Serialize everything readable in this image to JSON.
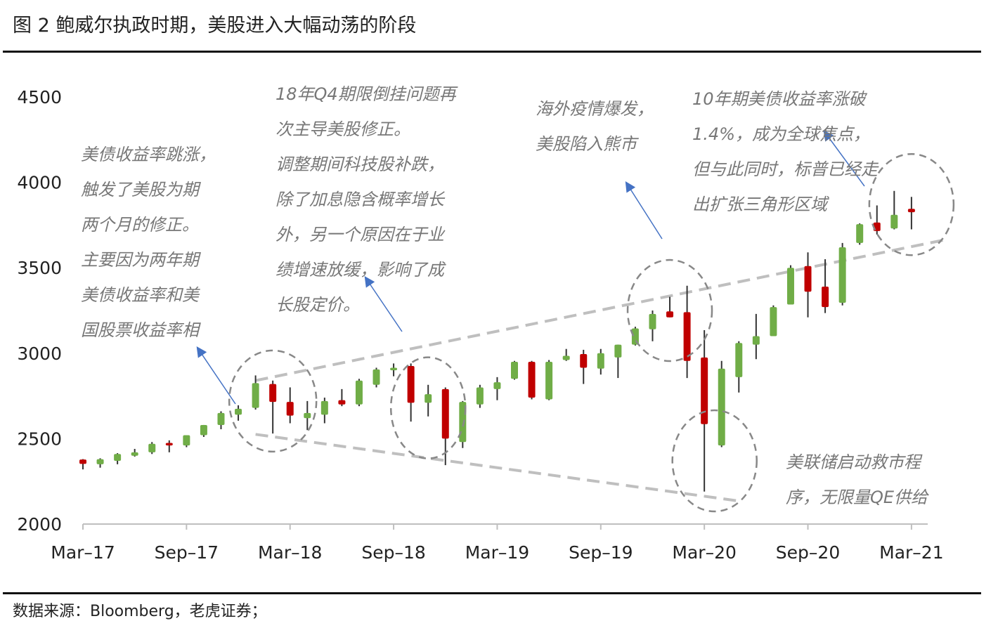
{
  "title": "图 2 鲍威尔执政时期，美股进入大幅动荡的阶段",
  "source": "数据来源：Bloomberg，老虎证券；",
  "chart_data": {
    "type": "candlestick",
    "title": "",
    "ylim": [
      2000,
      4500
    ],
    "yticks": [
      2000,
      2500,
      3000,
      3500,
      4000,
      4500
    ],
    "xticks": [
      "Mar–17",
      "Sep–17",
      "Mar–18",
      "Sep–18",
      "Mar–19",
      "Sep–19",
      "Mar–20",
      "Sep–20",
      "Mar–21"
    ],
    "up_color": "#70AD47",
    "down_color": "#C00000",
    "candles": [
      {
        "month": "2017-03",
        "open": 2378,
        "close": 2352,
        "high": 2380,
        "low": 2320
      },
      {
        "month": "2017-04",
        "open": 2350,
        "close": 2380,
        "high": 2385,
        "low": 2330
      },
      {
        "month": "2017-05",
        "open": 2370,
        "close": 2410,
        "high": 2415,
        "low": 2350
      },
      {
        "month": "2017-06",
        "open": 2400,
        "close": 2420,
        "high": 2440,
        "low": 2395
      },
      {
        "month": "2017-07",
        "open": 2420,
        "close": 2470,
        "high": 2480,
        "low": 2410
      },
      {
        "month": "2017-08",
        "open": 2475,
        "close": 2460,
        "high": 2490,
        "low": 2420
      },
      {
        "month": "2017-09",
        "open": 2460,
        "close": 2520,
        "high": 2520,
        "low": 2450
      },
      {
        "month": "2017-10",
        "open": 2520,
        "close": 2580,
        "high": 2580,
        "low": 2510
      },
      {
        "month": "2017-11",
        "open": 2580,
        "close": 2650,
        "high": 2660,
        "low": 2555
      },
      {
        "month": "2017-12",
        "open": 2640,
        "close": 2675,
        "high": 2695,
        "low": 2605
      },
      {
        "month": "2018-01",
        "open": 2680,
        "close": 2825,
        "high": 2870,
        "low": 2670
      },
      {
        "month": "2018-02",
        "open": 2820,
        "close": 2715,
        "high": 2840,
        "low": 2530
      },
      {
        "month": "2018-03",
        "open": 2715,
        "close": 2635,
        "high": 2800,
        "low": 2590
      },
      {
        "month": "2018-04",
        "open": 2620,
        "close": 2650,
        "high": 2720,
        "low": 2550
      },
      {
        "month": "2018-05",
        "open": 2640,
        "close": 2720,
        "high": 2740,
        "low": 2590
      },
      {
        "month": "2018-06",
        "open": 2725,
        "close": 2700,
        "high": 2790,
        "low": 2690
      },
      {
        "month": "2018-07",
        "open": 2700,
        "close": 2840,
        "high": 2850,
        "low": 2690
      },
      {
        "month": "2018-08",
        "open": 2815,
        "close": 2905,
        "high": 2915,
        "low": 2800
      },
      {
        "month": "2018-09",
        "open": 2900,
        "close": 2915,
        "high": 2940,
        "low": 2865
      },
      {
        "month": "2018-10",
        "open": 2925,
        "close": 2710,
        "high": 2940,
        "low": 2600
      },
      {
        "month": "2018-11",
        "open": 2710,
        "close": 2760,
        "high": 2815,
        "low": 2630
      },
      {
        "month": "2018-12",
        "open": 2790,
        "close": 2500,
        "high": 2800,
        "low": 2345
      },
      {
        "month": "2019-01",
        "open": 2480,
        "close": 2715,
        "high": 2720,
        "low": 2445
      },
      {
        "month": "2019-02",
        "open": 2700,
        "close": 2800,
        "high": 2815,
        "low": 2680
      },
      {
        "month": "2019-03",
        "open": 2790,
        "close": 2830,
        "high": 2860,
        "low": 2725
      },
      {
        "month": "2019-04",
        "open": 2850,
        "close": 2950,
        "high": 2955,
        "low": 2845
      },
      {
        "month": "2019-05",
        "open": 2950,
        "close": 2740,
        "high": 2955,
        "low": 2730
      },
      {
        "month": "2019-06",
        "open": 2730,
        "close": 2950,
        "high": 2960,
        "low": 2725
      },
      {
        "month": "2019-07",
        "open": 2960,
        "close": 2985,
        "high": 3025,
        "low": 2955
      },
      {
        "month": "2019-08",
        "open": 2995,
        "close": 2915,
        "high": 3020,
        "low": 2820
      },
      {
        "month": "2019-09",
        "open": 2910,
        "close": 3000,
        "high": 3025,
        "low": 2875
      },
      {
        "month": "2019-10",
        "open": 2975,
        "close": 3050,
        "high": 3050,
        "low": 2855
      },
      {
        "month": "2019-11",
        "open": 3050,
        "close": 3145,
        "high": 3155,
        "low": 3045
      },
      {
        "month": "2019-12",
        "open": 3140,
        "close": 3230,
        "high": 3250,
        "low": 3070
      },
      {
        "month": "2020-01",
        "open": 3245,
        "close": 3210,
        "high": 3330,
        "low": 3210
      },
      {
        "month": "2020-02",
        "open": 3240,
        "close": 2955,
        "high": 3395,
        "low": 2855
      },
      {
        "month": "2020-03",
        "open": 2975,
        "close": 2585,
        "high": 3135,
        "low": 2190
      },
      {
        "month": "2020-04",
        "open": 2460,
        "close": 2910,
        "high": 2955,
        "low": 2450
      },
      {
        "month": "2020-05",
        "open": 2860,
        "close": 3060,
        "high": 3070,
        "low": 2770
      },
      {
        "month": "2020-06",
        "open": 3050,
        "close": 3100,
        "high": 3230,
        "low": 2965
      },
      {
        "month": "2020-07",
        "open": 3100,
        "close": 3270,
        "high": 3280,
        "low": 3100
      },
      {
        "month": "2020-08",
        "open": 3285,
        "close": 3500,
        "high": 3515,
        "low": 3285
      },
      {
        "month": "2020-09",
        "open": 3510,
        "close": 3360,
        "high": 3590,
        "low": 3210
      },
      {
        "month": "2020-10",
        "open": 3390,
        "close": 3270,
        "high": 3550,
        "low": 3235
      },
      {
        "month": "2020-11",
        "open": 3295,
        "close": 3620,
        "high": 3645,
        "low": 3280
      },
      {
        "month": "2020-12",
        "open": 3645,
        "close": 3755,
        "high": 3760,
        "low": 3635
      },
      {
        "month": "2021-01",
        "open": 3765,
        "close": 3715,
        "high": 3865,
        "low": 3695
      },
      {
        "month": "2021-02",
        "open": 3730,
        "close": 3810,
        "high": 3950,
        "low": 3725
      },
      {
        "month": "2021-03",
        "open": 3845,
        "close": 3825,
        "high": 3915,
        "low": 3725
      }
    ],
    "trendlines": [
      {
        "from": {
          "month": "2018-01",
          "value": 2840
        },
        "to": {
          "month": "2021-05",
          "value": 3665
        }
      },
      {
        "from": {
          "month": "2018-01",
          "value": 2525
        },
        "to": {
          "month": "2020-05",
          "value": 2135
        }
      }
    ],
    "annotations": [
      {
        "id": "anno-treasury-jump",
        "lines": [
          "美债收益率跳涨，",
          "触发了美股为期",
          "两个月的修正。",
          "主要因为两年期",
          "美债收益率和美",
          "国股票收益率相"
        ]
      },
      {
        "id": "anno-q4-2018",
        "lines": [
          "18年Q4期限倒挂问题再",
          "次主导美股修正。",
          "调整期间科技股补跌，",
          "除了加息隐含概率增长",
          "外，另一个原因在于业",
          "绩增速放缓，影响了成",
          "长股定价。"
        ]
      },
      {
        "id": "anno-pandemic",
        "lines": [
          "海外疫情爆发，",
          "美股陷入熊市"
        ]
      },
      {
        "id": "anno-10y-treasury",
        "lines": [
          "10年期美债收益率涨破",
          "1.4%，成为全球焦点，",
          "但与此同时，标普已经走",
          "出扩张三角形区域"
        ]
      },
      {
        "id": "anno-fed-rescue",
        "lines": [
          "美联储启动救市程",
          "序，无限量QE供给"
        ]
      }
    ]
  }
}
